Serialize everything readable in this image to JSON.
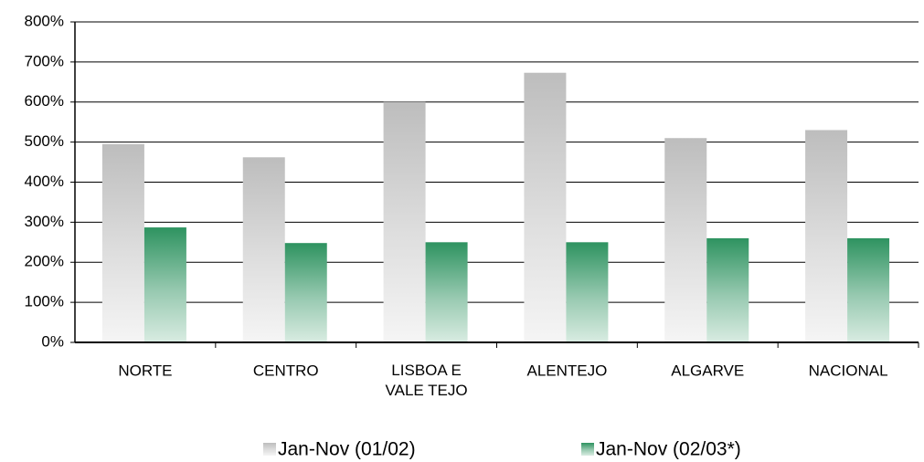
{
  "chart_data": {
    "type": "bar",
    "categories": [
      "NORTE",
      "CENTRO",
      "LISBOA E\nVALE TEJO",
      "ALENTEJO",
      "ALGARVE",
      "NACIONAL"
    ],
    "series": [
      {
        "name": "Jan-Nov (01/02)",
        "color": "#bdbdbd",
        "values": [
          495,
          462,
          600,
          673,
          510,
          530
        ]
      },
      {
        "name": "Jan-Nov (02/03*)",
        "color": "#2e9360",
        "values": [
          287,
          248,
          250,
          250,
          260,
          260
        ]
      }
    ],
    "ylim": [
      0,
      800
    ],
    "yticks": [
      {
        "value": 0,
        "label": "0%"
      },
      {
        "value": 100,
        "label": "100%"
      },
      {
        "value": 200,
        "label": "200%"
      },
      {
        "value": 300,
        "label": "300%"
      },
      {
        "value": 400,
        "label": "400%"
      },
      {
        "value": 500,
        "label": "500%"
      },
      {
        "value": 600,
        "label": "600%"
      },
      {
        "value": 700,
        "label": "700%"
      },
      {
        "value": 800,
        "label": "800%"
      }
    ],
    "grid": true,
    "legend": "bottom"
  }
}
